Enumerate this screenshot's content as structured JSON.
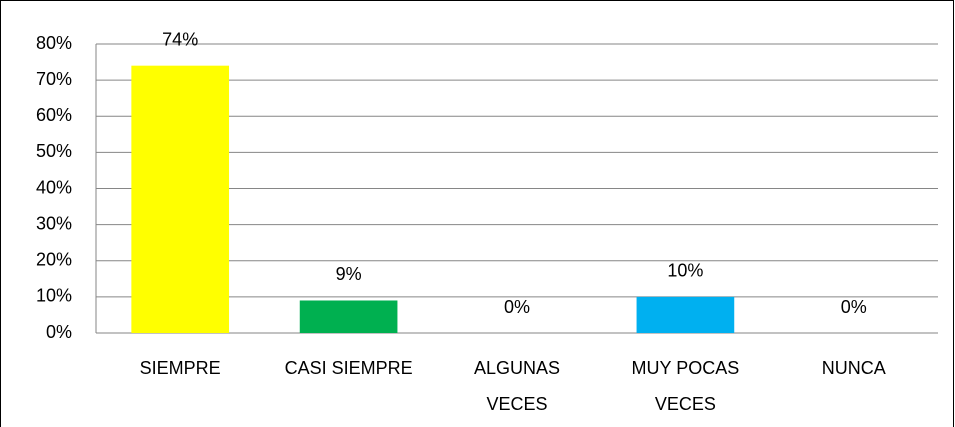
{
  "chart_data": {
    "type": "bar",
    "categories": [
      "SIEMPRE",
      "CASI SIEMPRE",
      "ALGUNAS VECES",
      "MUY POCAS VECES",
      "NUNCA"
    ],
    "values": [
      74,
      9,
      0,
      10,
      0
    ],
    "value_labels": [
      "74%",
      "9%",
      "0%",
      "10%",
      "0%"
    ],
    "colors": [
      "#ffff00",
      "#00b050",
      null,
      "#00b0f0",
      null
    ],
    "ylim": [
      0,
      80
    ],
    "yticks": [
      {
        "value": 0,
        "label": "0%"
      },
      {
        "value": 10,
        "label": "10%"
      },
      {
        "value": 20,
        "label": "20%"
      },
      {
        "value": 30,
        "label": "30%"
      },
      {
        "value": 40,
        "label": "40%"
      },
      {
        "value": 50,
        "label": "50%"
      },
      {
        "value": 60,
        "label": "60%"
      },
      {
        "value": 70,
        "label": "70%"
      },
      {
        "value": 80,
        "label": "80%"
      }
    ],
    "grid": true
  }
}
